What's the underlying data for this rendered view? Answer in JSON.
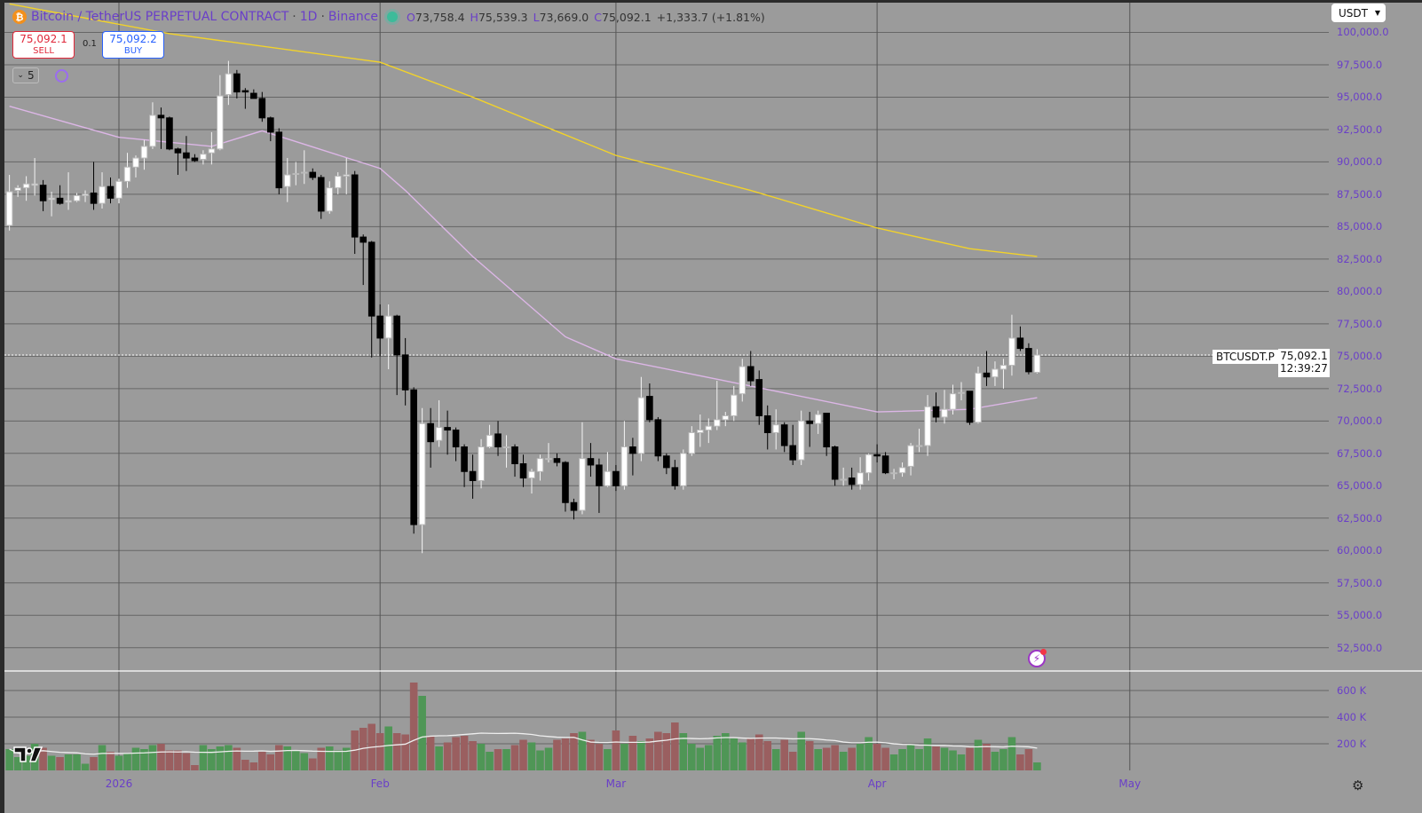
{
  "header": {
    "symbol_icon": "bitcoin-icon",
    "symbol": "Bitcoin / TetherUS PERPETUAL CONTRACT",
    "interval": "1D",
    "exchange": "Binance",
    "separator": "·",
    "ohlc": {
      "o_label": "O",
      "o": "73,758.4",
      "h_label": "H",
      "h": "75,539.3",
      "l_label": "L",
      "l": "73,669.0",
      "c_label": "C",
      "c": "75,092.1",
      "change": "+1,333.7 (+1.81%)"
    }
  },
  "trade": {
    "sell_price": "75,092.1",
    "sell_label": "SELL",
    "spread": "0.1",
    "buy_price": "75,092.2",
    "buy_label": "BUY"
  },
  "indicators_toggle": {
    "count": "5"
  },
  "currency": {
    "selected": "USDT"
  },
  "last_price": {
    "symbol": "BTCUSDT.P",
    "price": "75,092.1",
    "countdown": "12:39:27"
  },
  "colors": {
    "background": "#9b9b9b",
    "up_candle": "#ffffff",
    "down_candle": "#000000",
    "up_volume": "#4f9656",
    "down_volume": "#9a5f60",
    "ma_long": "#f2d22a",
    "ma_short": "#dcb6e6",
    "axis_text": "#6a3fc8"
  },
  "chart_data": {
    "type": "candlestick",
    "title": "",
    "price_ticks": [
      "100,000.0",
      "97,500.0",
      "95,000.0",
      "92,500.0",
      "90,000.0",
      "87,500.0",
      "85,000.0",
      "82,500.0",
      "80,000.0",
      "77,500.0",
      "75,000.0",
      "72,500.0",
      "70,000.0",
      "67,500.0",
      "65,000.0",
      "62,500.0",
      "60,000.0",
      "57,500.0",
      "55,000.0",
      "52,500.0"
    ],
    "price_tick_values": [
      100000,
      97500,
      95000,
      92500,
      90000,
      87500,
      85000,
      82500,
      80000,
      77500,
      75000,
      72500,
      70000,
      67500,
      65000,
      62500,
      60000,
      57500,
      55000,
      52500
    ],
    "ylim": [
      50700,
      102500
    ],
    "volume_ticks": [
      "600 K",
      "400 K",
      "200 K"
    ],
    "volume_tick_values": [
      600000,
      400000,
      200000
    ],
    "time_ticks": [
      {
        "label": "2026",
        "date": "2026-01-01"
      },
      {
        "label": "Feb",
        "date": "2026-02-01"
      },
      {
        "label": "Mar",
        "date": "2026-03-01"
      },
      {
        "label": "Apr",
        "date": "2026-04-01"
      },
      {
        "label": "May",
        "date": "2026-05-01"
      }
    ],
    "last_price_line": 75092.1,
    "columns": [
      "date",
      "open",
      "high",
      "low",
      "close",
      "volume"
    ],
    "candles": [
      [
        "2025-12-19",
        85100,
        89000,
        84700,
        87700,
        160000
      ],
      [
        "2025-12-20",
        87800,
        88200,
        87300,
        88000,
        100000
      ],
      [
        "2025-12-21",
        88000,
        88900,
        87000,
        88300,
        110000
      ],
      [
        "2025-12-22",
        88200,
        90300,
        87400,
        88300,
        200000
      ],
      [
        "2025-12-23",
        88200,
        88600,
        86200,
        87000,
        170000
      ],
      [
        "2025-12-24",
        87100,
        87700,
        85800,
        87200,
        110000
      ],
      [
        "2025-12-25",
        87200,
        88200,
        86700,
        86800,
        100000
      ],
      [
        "2025-12-26",
        86900,
        89200,
        86300,
        87000,
        120000
      ],
      [
        "2025-12-27",
        87000,
        87600,
        86900,
        87400,
        120000
      ],
      [
        "2025-12-28",
        87400,
        87800,
        86900,
        87500,
        50000
      ],
      [
        "2025-12-29",
        87600,
        90000,
        86300,
        86800,
        100000
      ],
      [
        "2025-12-30",
        86800,
        89200,
        86400,
        88100,
        190000
      ],
      [
        "2025-12-31",
        88100,
        88800,
        86800,
        87200,
        140000
      ],
      [
        "2026-01-01",
        87200,
        88700,
        86800,
        88500,
        110000
      ],
      [
        "2026-01-02",
        88500,
        90700,
        88000,
        89600,
        130000
      ],
      [
        "2026-01-03",
        89600,
        90500,
        88800,
        90300,
        170000
      ],
      [
        "2026-01-04",
        90300,
        91700,
        89400,
        91200,
        160000
      ],
      [
        "2026-01-05",
        91200,
        94600,
        91000,
        93600,
        190000
      ],
      [
        "2026-01-06",
        93600,
        94200,
        91000,
        93400,
        200000
      ],
      [
        "2026-01-07",
        93400,
        93500,
        90900,
        91000,
        150000
      ],
      [
        "2026-01-08",
        91000,
        91100,
        89000,
        90700,
        150000
      ],
      [
        "2026-01-09",
        90700,
        92000,
        89300,
        90300,
        130000
      ],
      [
        "2026-01-10",
        90300,
        90600,
        90000,
        90100,
        40000
      ],
      [
        "2026-01-11",
        90200,
        90900,
        89800,
        90600,
        190000
      ],
      [
        "2026-01-12",
        90700,
        92300,
        89800,
        91000,
        160000
      ],
      [
        "2026-01-13",
        91000,
        96700,
        90900,
        95100,
        180000
      ],
      [
        "2026-01-14",
        95200,
        97800,
        94400,
        96800,
        190000
      ],
      [
        "2026-01-15",
        96800,
        97100,
        94900,
        95400,
        170000
      ],
      [
        "2026-01-16",
        95500,
        95700,
        94100,
        95400,
        80000
      ],
      [
        "2026-01-17",
        95300,
        95600,
        94900,
        94900,
        60000
      ],
      [
        "2026-01-18",
        94900,
        95400,
        93100,
        93400,
        140000
      ],
      [
        "2026-01-19",
        93400,
        93500,
        91600,
        92300,
        120000
      ],
      [
        "2026-01-20",
        92300,
        92600,
        87500,
        88000,
        190000
      ],
      [
        "2026-01-21",
        88100,
        90300,
        86900,
        89000,
        180000
      ],
      [
        "2026-01-22",
        89100,
        90000,
        88200,
        89100,
        150000
      ],
      [
        "2026-01-23",
        89200,
        90900,
        88300,
        89200,
        130000
      ],
      [
        "2026-01-24",
        89200,
        89500,
        88600,
        88800,
        90000
      ],
      [
        "2026-01-25",
        88800,
        89000,
        85600,
        86200,
        170000
      ],
      [
        "2026-01-26",
        86200,
        88500,
        86000,
        88000,
        180000
      ],
      [
        "2026-01-27",
        88000,
        89200,
        87500,
        88900,
        150000
      ],
      [
        "2026-01-28",
        88900,
        90300,
        87500,
        89000,
        170000
      ],
      [
        "2026-01-29",
        89000,
        89300,
        82900,
        84200,
        300000
      ],
      [
        "2026-01-30",
        84200,
        84400,
        80500,
        83800,
        320000
      ],
      [
        "2026-01-31",
        83800,
        83900,
        74900,
        78100,
        350000
      ],
      [
        "2026-02-01",
        78100,
        79000,
        75000,
        76400,
        280000
      ],
      [
        "2026-02-02",
        76400,
        79000,
        74000,
        78100,
        330000
      ],
      [
        "2026-02-03",
        78100,
        78200,
        72000,
        75100,
        280000
      ],
      [
        "2026-02-04",
        75100,
        76400,
        71200,
        72400,
        270000
      ],
      [
        "2026-02-05",
        72400,
        72600,
        61300,
        62000,
        660000
      ],
      [
        "2026-02-06",
        62000,
        71000,
        59800,
        69800,
        560000
      ],
      [
        "2026-02-07",
        69800,
        71000,
        66400,
        68400,
        260000
      ],
      [
        "2026-02-08",
        68500,
        71600,
        68000,
        69500,
        180000
      ],
      [
        "2026-02-09",
        69500,
        70800,
        67400,
        69300,
        210000
      ],
      [
        "2026-02-10",
        69300,
        69500,
        66900,
        68000,
        250000
      ],
      [
        "2026-02-11",
        68000,
        68200,
        64900,
        66100,
        260000
      ],
      [
        "2026-02-12",
        66100,
        67400,
        64000,
        65400,
        220000
      ],
      [
        "2026-02-13",
        65400,
        68600,
        64800,
        68000,
        200000
      ],
      [
        "2026-02-14",
        68000,
        69700,
        67900,
        68900,
        140000
      ],
      [
        "2026-02-15",
        69000,
        70000,
        67300,
        68000,
        160000
      ],
      [
        "2026-02-16",
        68000,
        68900,
        66400,
        68000,
        160000
      ],
      [
        "2026-02-17",
        68000,
        68200,
        65700,
        66700,
        190000
      ],
      [
        "2026-02-18",
        66700,
        67400,
        64900,
        65600,
        230000
      ],
      [
        "2026-02-19",
        65600,
        66300,
        64400,
        66100,
        210000
      ],
      [
        "2026-02-20",
        66100,
        67400,
        65400,
        67100,
        150000
      ],
      [
        "2026-02-21",
        67100,
        68300,
        66800,
        67100,
        170000
      ],
      [
        "2026-02-22",
        67100,
        67500,
        66500,
        66800,
        230000
      ],
      [
        "2026-02-23",
        66800,
        66900,
        63000,
        63700,
        240000
      ],
      [
        "2026-02-24",
        63700,
        64000,
        62400,
        63100,
        280000
      ],
      [
        "2026-02-25",
        63100,
        69900,
        62800,
        67100,
        290000
      ],
      [
        "2026-02-26",
        67100,
        68300,
        65700,
        66600,
        230000
      ],
      [
        "2026-02-27",
        66600,
        67100,
        62900,
        65000,
        200000
      ],
      [
        "2026-02-28",
        65000,
        67600,
        64900,
        66100,
        160000
      ],
      [
        "2026-03-01",
        66100,
        66600,
        64600,
        65000,
        300000
      ],
      [
        "2026-03-02",
        65000,
        70000,
        64700,
        68000,
        200000
      ],
      [
        "2026-03-03",
        68000,
        68700,
        65800,
        67500,
        260000
      ],
      [
        "2026-03-04",
        67500,
        73400,
        66900,
        71800,
        220000
      ],
      [
        "2026-03-05",
        71900,
        72900,
        69900,
        70100,
        240000
      ],
      [
        "2026-03-06",
        70100,
        70300,
        66900,
        67300,
        290000
      ],
      [
        "2026-03-07",
        67300,
        67500,
        65900,
        66400,
        280000
      ],
      [
        "2026-03-08",
        66400,
        67000,
        64700,
        65000,
        360000
      ],
      [
        "2026-03-09",
        65000,
        67800,
        64700,
        67500,
        280000
      ],
      [
        "2026-03-10",
        67500,
        69600,
        67300,
        69100,
        200000
      ],
      [
        "2026-03-11",
        69100,
        70500,
        68000,
        69300,
        170000
      ],
      [
        "2026-03-12",
        69300,
        70200,
        68300,
        69600,
        190000
      ],
      [
        "2026-03-13",
        69600,
        73100,
        69300,
        70100,
        260000
      ],
      [
        "2026-03-14",
        70100,
        70700,
        69600,
        70400,
        280000
      ],
      [
        "2026-03-15",
        70400,
        72700,
        70000,
        72000,
        240000
      ],
      [
        "2026-03-16",
        72100,
        74800,
        71500,
        74200,
        210000
      ],
      [
        "2026-03-17",
        74200,
        75400,
        72700,
        73100,
        240000
      ],
      [
        "2026-03-18",
        73200,
        73900,
        69700,
        70400,
        270000
      ],
      [
        "2026-03-19",
        70400,
        71200,
        67800,
        69100,
        220000
      ],
      [
        "2026-03-20",
        69100,
        70900,
        67800,
        69700,
        160000
      ],
      [
        "2026-03-21",
        69700,
        69900,
        67600,
        68100,
        230000
      ],
      [
        "2026-03-22",
        68100,
        69700,
        66600,
        67000,
        140000
      ],
      [
        "2026-03-23",
        67000,
        70800,
        66600,
        70000,
        290000
      ],
      [
        "2026-03-24",
        70000,
        70700,
        68000,
        69800,
        220000
      ],
      [
        "2026-03-25",
        69800,
        70800,
        69000,
        70500,
        160000
      ],
      [
        "2026-03-26",
        70600,
        70600,
        67300,
        68000,
        170000
      ],
      [
        "2026-03-27",
        68000,
        68100,
        65000,
        65500,
        190000
      ],
      [
        "2026-03-28",
        65500,
        66400,
        65000,
        65500,
        140000
      ],
      [
        "2026-03-29",
        65600,
        66400,
        64700,
        65100,
        170000
      ],
      [
        "2026-03-30",
        65100,
        67200,
        64700,
        66000,
        200000
      ],
      [
        "2026-03-31",
        66000,
        67500,
        65400,
        67400,
        250000
      ],
      [
        "2026-04-01",
        67400,
        68200,
        66800,
        67300,
        200000
      ],
      [
        "2026-04-02",
        67300,
        67600,
        65900,
        66000,
        170000
      ],
      [
        "2026-04-03",
        66000,
        66300,
        65500,
        66000,
        120000
      ],
      [
        "2026-04-04",
        66000,
        66800,
        65700,
        66400,
        160000
      ],
      [
        "2026-04-05",
        66500,
        68300,
        65800,
        68100,
        190000
      ],
      [
        "2026-04-06",
        68100,
        69400,
        67600,
        68100,
        160000
      ],
      [
        "2026-04-07",
        68100,
        72000,
        67300,
        71100,
        240000
      ],
      [
        "2026-04-08",
        71100,
        72200,
        69900,
        70300,
        180000
      ],
      [
        "2026-04-09",
        70300,
        72400,
        69800,
        70900,
        170000
      ],
      [
        "2026-04-10",
        70900,
        72800,
        70500,
        72100,
        150000
      ],
      [
        "2026-04-11",
        72200,
        73000,
        71600,
        72200,
        120000
      ],
      [
        "2026-04-12",
        72300,
        72300,
        69700,
        69900,
        170000
      ],
      [
        "2026-04-13",
        69900,
        74200,
        69800,
        73700,
        230000
      ],
      [
        "2026-04-14",
        73700,
        75400,
        72700,
        73400,
        200000
      ],
      [
        "2026-04-15",
        73400,
        74600,
        72700,
        74000,
        140000
      ],
      [
        "2026-04-16",
        74000,
        74800,
        72500,
        74300,
        160000
      ],
      [
        "2026-04-17",
        74300,
        78200,
        73500,
        76400,
        250000
      ],
      [
        "2026-04-18",
        76400,
        77300,
        75400,
        75600,
        120000
      ],
      [
        "2026-04-19",
        75600,
        76000,
        73600,
        73800,
        160000
      ],
      [
        "2026-04-20",
        73758.4,
        75539.3,
        73669.0,
        75092.1,
        60000
      ]
    ],
    "ma_series": [
      {
        "color_key": "ma_long",
        "points": [
          [
            "2025-12-19",
            102200
          ],
          [
            "2026-01-07",
            99900
          ],
          [
            "2026-02-01",
            97700
          ],
          [
            "2026-02-12",
            95000
          ],
          [
            "2026-03-01",
            90500
          ],
          [
            "2026-03-17",
            87800
          ],
          [
            "2026-04-01",
            84900
          ],
          [
            "2026-04-12",
            83300
          ],
          [
            "2026-04-20",
            82700
          ]
        ]
      },
      {
        "color_key": "ma_short",
        "points": [
          [
            "2025-12-19",
            94300
          ],
          [
            "2026-01-01",
            91900
          ],
          [
            "2026-01-12",
            91200
          ],
          [
            "2026-01-18",
            92400
          ],
          [
            "2026-02-01",
            89500
          ],
          [
            "2026-02-04",
            87800
          ],
          [
            "2026-02-12",
            82700
          ],
          [
            "2026-02-23",
            76500
          ],
          [
            "2026-03-01",
            74800
          ],
          [
            "2026-03-17",
            72700
          ],
          [
            "2026-04-01",
            70700
          ],
          [
            "2026-04-12",
            70900
          ],
          [
            "2026-04-20",
            71800
          ]
        ]
      }
    ]
  },
  "footer": {
    "logo": "TradingView",
    "settings_icon": "gear-icon"
  }
}
